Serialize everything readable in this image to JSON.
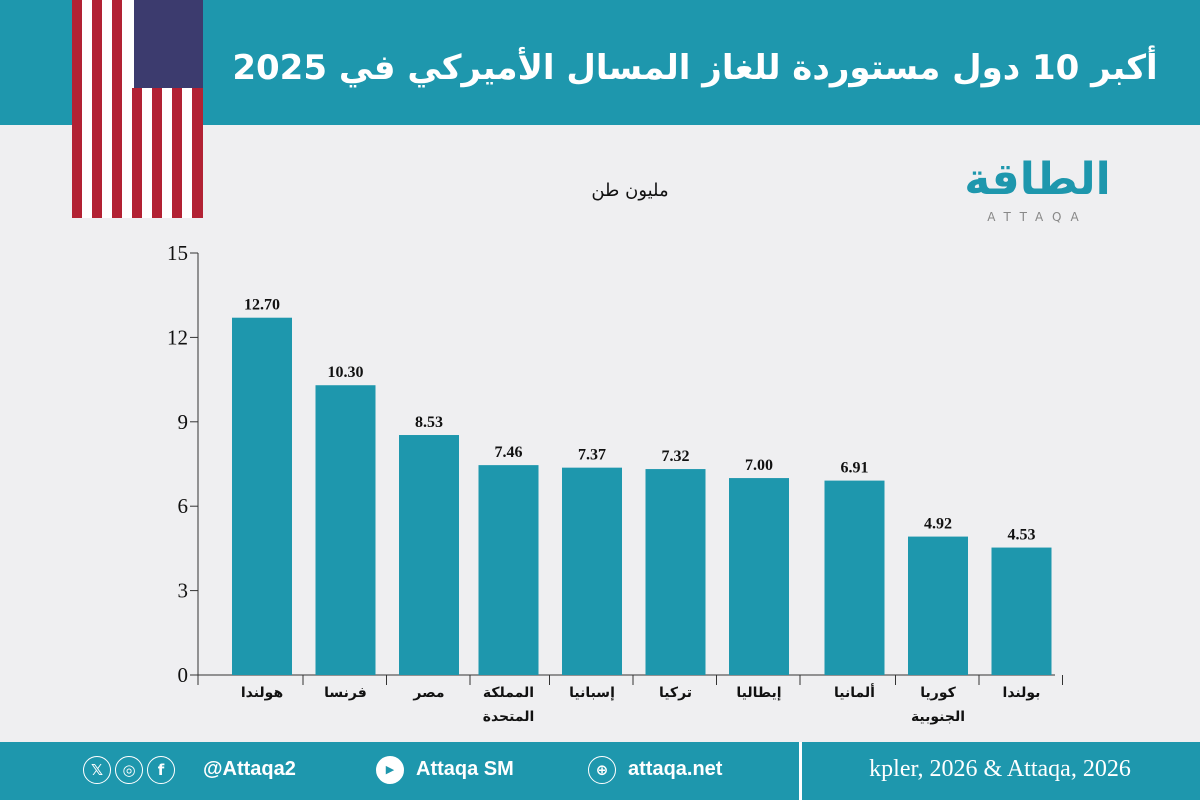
{
  "header": {
    "title": "أكبر 10 دول مستوردة للغاز المسال الأميركي في 2025"
  },
  "logo": {
    "arabic": "الطاقة",
    "english": "ATTAQA"
  },
  "footer": {
    "handle": "@Attaqa2",
    "youtube": "Attaqa SM",
    "website": "attaqa.net",
    "source": "kpler, 2026 & Attaqa, 2026",
    "icons": [
      "x-icon",
      "instagram-icon",
      "facebook-icon",
      "youtube-icon",
      "globe-icon"
    ]
  },
  "colors": {
    "bar": "#1e97ad",
    "header": "#1e97ad"
  },
  "chart_data": {
    "type": "bar",
    "title": "أكبر 10 دول مستوردة للغاز المسال الأميركي في 2025",
    "ylabel": "مليون طن",
    "ylim": [
      0,
      15
    ],
    "yticks": [
      0,
      3,
      6,
      9,
      12,
      15
    ],
    "grid": false,
    "categories": [
      "هولندا",
      "فرنسا",
      "مصر",
      "المملكة المتحدة",
      "إسبانيا",
      "تركيا",
      "إيطاليا",
      "ألمانيا",
      "كوريا الجنوبية",
      "بولندا"
    ],
    "values": [
      12.7,
      10.3,
      8.53,
      7.46,
      7.37,
      7.32,
      7.0,
      6.91,
      4.92,
      4.53
    ],
    "data_labels": [
      "12.70",
      "10.30",
      "8.53",
      "7.46",
      "7.37",
      "7.32",
      "7.00",
      "6.91",
      "4.92",
      "4.53"
    ]
  }
}
